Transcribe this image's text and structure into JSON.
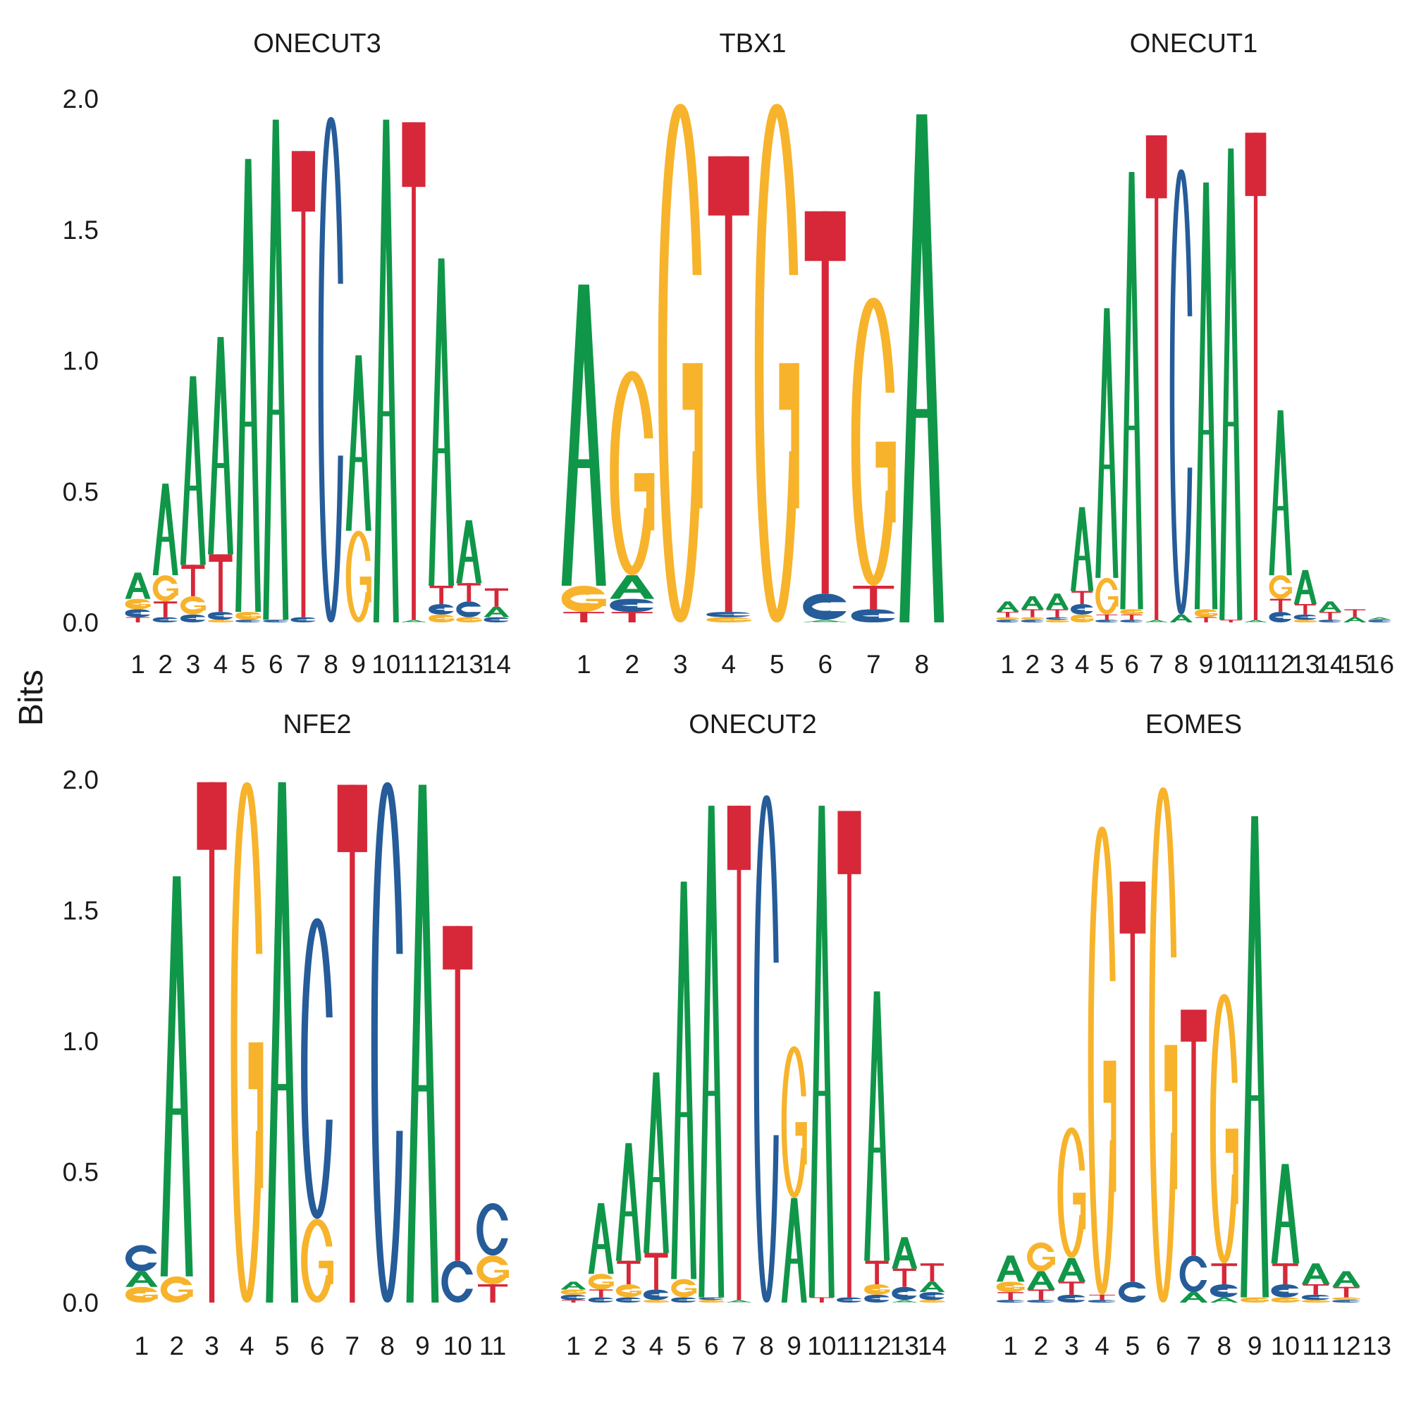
{
  "figure": {
    "ylabel": "Bits",
    "colors": {
      "A": "#109648",
      "C": "#255C99",
      "G": "#F7B32B",
      "T": "#D62839"
    }
  },
  "chart_data": [
    {
      "type": "sequence-logo",
      "title": "ONECUT3",
      "xlabel": "",
      "ylabel": "Bits",
      "ylim": [
        0,
        2
      ],
      "yticks": [
        "0.0",
        "0.5",
        "1.0",
        "1.5",
        "2.0"
      ],
      "positions": [
        "1",
        "2",
        "3",
        "4",
        "5",
        "6",
        "7",
        "8",
        "9",
        "10",
        "11",
        "12",
        "13",
        "14"
      ],
      "stacks": [
        [
          [
            "T",
            0.02
          ],
          [
            "C",
            0.03
          ],
          [
            "G",
            0.04
          ],
          [
            "A",
            0.1
          ]
        ],
        [
          [
            "C",
            0.02
          ],
          [
            "T",
            0.06
          ],
          [
            "G",
            0.1
          ],
          [
            "A",
            0.35
          ]
        ],
        [
          [
            "C",
            0.03
          ],
          [
            "G",
            0.07
          ],
          [
            "T",
            0.12
          ],
          [
            "A",
            0.72
          ]
        ],
        [
          [
            "G",
            0.01
          ],
          [
            "C",
            0.03
          ],
          [
            "T",
            0.22
          ],
          [
            "A",
            0.83
          ]
        ],
        [
          [
            "C",
            0.01
          ],
          [
            "G",
            0.03
          ],
          [
            "A",
            1.73
          ]
        ],
        [
          [
            "C",
            0.01
          ],
          [
            "A",
            1.91
          ]
        ],
        [
          [
            "C",
            0.02
          ],
          [
            "T",
            1.78
          ]
        ],
        [
          [
            "C",
            1.93
          ]
        ],
        [
          [
            "G",
            0.35
          ],
          [
            "A",
            0.67
          ]
        ],
        [
          [
            "A",
            1.92
          ]
        ],
        [
          [
            "A",
            0.01
          ],
          [
            "T",
            1.9
          ]
        ],
        [
          [
            "G",
            0.03
          ],
          [
            "C",
            0.04
          ],
          [
            "T",
            0.07
          ],
          [
            "A",
            1.25
          ]
        ],
        [
          [
            "G",
            0.02
          ],
          [
            "C",
            0.06
          ],
          [
            "T",
            0.07
          ],
          [
            "A",
            0.24
          ]
        ],
        [
          [
            "C",
            0.02
          ],
          [
            "A",
            0.04
          ],
          [
            "T",
            0.07
          ]
        ]
      ]
    },
    {
      "type": "sequence-logo",
      "title": "TBX1",
      "xlabel": "",
      "ylabel": "Bits",
      "ylim": [
        0,
        2
      ],
      "yticks": [
        "0.0",
        "0.5",
        "1.0",
        "1.5",
        "2.0"
      ],
      "positions": [
        "1",
        "2",
        "3",
        "4",
        "5",
        "6",
        "7",
        "8"
      ],
      "stacks": [
        [
          [
            "T",
            0.04
          ],
          [
            "G",
            0.1
          ],
          [
            "A",
            1.15
          ]
        ],
        [
          [
            "T",
            0.04
          ],
          [
            "C",
            0.05
          ],
          [
            "A",
            0.09
          ],
          [
            "G",
            0.78
          ]
        ],
        [
          [
            "G",
            1.98
          ]
        ],
        [
          [
            "G",
            0.02
          ],
          [
            "C",
            0.02
          ],
          [
            "T",
            1.74
          ]
        ],
        [
          [
            "G",
            1.98
          ]
        ],
        [
          [
            "A",
            0.01
          ],
          [
            "C",
            0.1
          ],
          [
            "T",
            1.46
          ]
        ],
        [
          [
            "C",
            0.05
          ],
          [
            "T",
            0.09
          ],
          [
            "G",
            1.1
          ]
        ],
        [
          [
            "A",
            1.94
          ]
        ]
      ]
    },
    {
      "type": "sequence-logo",
      "title": "ONECUT1",
      "xlabel": "",
      "ylabel": "Bits",
      "ylim": [
        0,
        2
      ],
      "yticks": [
        "0.0",
        "0.5",
        "1.0",
        "1.5",
        "2.0"
      ],
      "positions": [
        "1",
        "2",
        "3",
        "4",
        "5",
        "6",
        "7",
        "8",
        "9",
        "10",
        "11",
        "12",
        "13",
        "14",
        "15",
        "16"
      ],
      "stacks": [
        [
          [
            "C",
            0.01
          ],
          [
            "G",
            0.01
          ],
          [
            "T",
            0.02
          ],
          [
            "A",
            0.04
          ]
        ],
        [
          [
            "C",
            0.01
          ],
          [
            "G",
            0.01
          ],
          [
            "T",
            0.03
          ],
          [
            "A",
            0.05
          ]
        ],
        [
          [
            "G",
            0.01
          ],
          [
            "C",
            0.01
          ],
          [
            "T",
            0.03
          ],
          [
            "A",
            0.06
          ]
        ],
        [
          [
            "G",
            0.03
          ],
          [
            "C",
            0.04
          ],
          [
            "T",
            0.05
          ],
          [
            "A",
            0.32
          ]
        ],
        [
          [
            "C",
            0.01
          ],
          [
            "T",
            0.02
          ],
          [
            "G",
            0.14
          ],
          [
            "A",
            1.03
          ]
        ],
        [
          [
            "C",
            0.01
          ],
          [
            "T",
            0.02
          ],
          [
            "G",
            0.02
          ],
          [
            "A",
            1.67
          ]
        ],
        [
          [
            "A",
            0.01
          ],
          [
            "T",
            1.85
          ]
        ],
        [
          [
            "A",
            0.03
          ],
          [
            "C",
            1.7
          ]
        ],
        [
          [
            "T",
            0.02
          ],
          [
            "G",
            0.03
          ],
          [
            "A",
            1.63
          ]
        ],
        [
          [
            "T",
            0.01
          ],
          [
            "A",
            1.8
          ]
        ],
        [
          [
            "A",
            0.01
          ],
          [
            "T",
            1.86
          ]
        ],
        [
          [
            "C",
            0.04
          ],
          [
            "T",
            0.05
          ],
          [
            "G",
            0.09
          ],
          [
            "A",
            0.63
          ]
        ],
        [
          [
            "G",
            0.01
          ],
          [
            "C",
            0.02
          ],
          [
            "T",
            0.04
          ],
          [
            "A",
            0.13
          ]
        ],
        [
          [
            "C",
            0.01
          ],
          [
            "T",
            0.03
          ],
          [
            "A",
            0.04
          ]
        ],
        [
          [
            "A",
            0.02
          ],
          [
            "T",
            0.03
          ]
        ],
        [
          [
            "C",
            0.01
          ],
          [
            "A",
            0.01
          ]
        ]
      ]
    },
    {
      "type": "sequence-logo",
      "title": "NFE2",
      "xlabel": "",
      "ylabel": "Bits",
      "ylim": [
        0,
        2
      ],
      "yticks": [
        "0.0",
        "0.5",
        "1.0",
        "1.5",
        "2.0"
      ],
      "positions": [
        "1",
        "2",
        "3",
        "4",
        "5",
        "6",
        "7",
        "8",
        "9",
        "10",
        "11"
      ],
      "stacks": [
        [
          [
            "G",
            0.06
          ],
          [
            "A",
            0.06
          ],
          [
            "C",
            0.1
          ]
        ],
        [
          [
            "G",
            0.1
          ],
          [
            "A",
            1.53
          ]
        ],
        [
          [
            "T",
            1.99
          ]
        ],
        [
          [
            "G",
            1.99
          ]
        ],
        [
          [
            "A",
            1.99
          ]
        ],
        [
          [
            "G",
            0.32
          ],
          [
            "C",
            1.15
          ]
        ],
        [
          [
            "T",
            1.98
          ]
        ],
        [
          [
            "C",
            1.99
          ]
        ],
        [
          [
            "A",
            1.98
          ]
        ],
        [
          [
            "C",
            0.16
          ],
          [
            "T",
            1.28
          ]
        ],
        [
          [
            "T",
            0.07
          ],
          [
            "G",
            0.11
          ],
          [
            "C",
            0.2
          ]
        ]
      ]
    },
    {
      "type": "sequence-logo",
      "title": "ONECUT2",
      "xlabel": "",
      "ylabel": "Bits",
      "ylim": [
        0,
        2
      ],
      "yticks": [
        "0.0",
        "0.5",
        "1.0",
        "1.5",
        "2.0"
      ],
      "positions": [
        "1",
        "2",
        "3",
        "4",
        "5",
        "6",
        "7",
        "8",
        "9",
        "10",
        "11",
        "12",
        "13",
        "14"
      ],
      "stacks": [
        [
          [
            "T",
            0.01
          ],
          [
            "C",
            0.02
          ],
          [
            "G",
            0.02
          ],
          [
            "A",
            0.03
          ]
        ],
        [
          [
            "C",
            0.02
          ],
          [
            "T",
            0.03
          ],
          [
            "G",
            0.06
          ],
          [
            "A",
            0.27
          ]
        ],
        [
          [
            "C",
            0.02
          ],
          [
            "G",
            0.05
          ],
          [
            "T",
            0.09
          ],
          [
            "A",
            0.45
          ]
        ],
        [
          [
            "G",
            0.01
          ],
          [
            "C",
            0.04
          ],
          [
            "T",
            0.14
          ],
          [
            "A",
            0.69
          ]
        ],
        [
          [
            "C",
            0.02
          ],
          [
            "G",
            0.07
          ],
          [
            "A",
            1.52
          ]
        ],
        [
          [
            "G",
            0.01
          ],
          [
            "C",
            0.01
          ],
          [
            "A",
            1.88
          ]
        ],
        [
          [
            "A",
            0.01
          ],
          [
            "T",
            1.89
          ]
        ],
        [
          [
            "C",
            1.94
          ]
        ],
        [
          [
            "A",
            0.4
          ],
          [
            "G",
            0.58
          ]
        ],
        [
          [
            "T",
            0.02
          ],
          [
            "A",
            1.88
          ]
        ],
        [
          [
            "C",
            0.02
          ],
          [
            "T",
            1.86
          ]
        ],
        [
          [
            "C",
            0.03
          ],
          [
            "G",
            0.04
          ],
          [
            "T",
            0.09
          ],
          [
            "A",
            1.03
          ]
        ],
        [
          [
            "A",
            0.01
          ],
          [
            "C",
            0.05
          ],
          [
            "T",
            0.07
          ],
          [
            "A",
            0.12
          ]
        ],
        [
          [
            "G",
            0.01
          ],
          [
            "C",
            0.03
          ],
          [
            "A",
            0.04
          ],
          [
            "T",
            0.07
          ]
        ]
      ]
    },
    {
      "type": "sequence-logo",
      "title": "EOMES",
      "xlabel": "",
      "ylabel": "Bits",
      "ylim": [
        0,
        2
      ],
      "yticks": [
        "0.0",
        "0.5",
        "1.0",
        "1.5",
        "2.0"
      ],
      "positions": [
        "1",
        "2",
        "3",
        "4",
        "5",
        "6",
        "7",
        "8",
        "9",
        "10",
        "11",
        "12",
        "13"
      ],
      "stacks": [
        [
          [
            "C",
            0.01
          ],
          [
            "T",
            0.03
          ],
          [
            "G",
            0.04
          ],
          [
            "A",
            0.1
          ]
        ],
        [
          [
            "C",
            0.01
          ],
          [
            "T",
            0.04
          ],
          [
            "A",
            0.07
          ],
          [
            "G",
            0.11
          ]
        ],
        [
          [
            "C",
            0.03
          ],
          [
            "T",
            0.05
          ],
          [
            "A",
            0.09
          ],
          [
            "G",
            0.5
          ]
        ],
        [
          [
            "C",
            0.01
          ],
          [
            "T",
            0.02
          ],
          [
            "G",
            1.79
          ]
        ],
        [
          [
            "C",
            0.08
          ],
          [
            "T",
            1.53
          ]
        ],
        [
          [
            "G",
            1.97
          ]
        ],
        [
          [
            "A",
            0.04
          ],
          [
            "C",
            0.14
          ],
          [
            "T",
            0.94
          ]
        ],
        [
          [
            "A",
            0.02
          ],
          [
            "C",
            0.05
          ],
          [
            "T",
            0.08
          ],
          [
            "G",
            1.03
          ]
        ],
        [
          [
            "G",
            0.02
          ],
          [
            "A",
            1.84
          ]
        ],
        [
          [
            "G",
            0.02
          ],
          [
            "C",
            0.05
          ],
          [
            "T",
            0.08
          ],
          [
            "A",
            0.38
          ]
        ],
        [
          [
            "G",
            0.01
          ],
          [
            "C",
            0.02
          ],
          [
            "T",
            0.04
          ],
          [
            "A",
            0.08
          ]
        ],
        [
          [
            "C",
            0.01
          ],
          [
            "G",
            0.01
          ],
          [
            "T",
            0.04
          ],
          [
            "A",
            0.06
          ]
        ],
        []
      ]
    }
  ]
}
